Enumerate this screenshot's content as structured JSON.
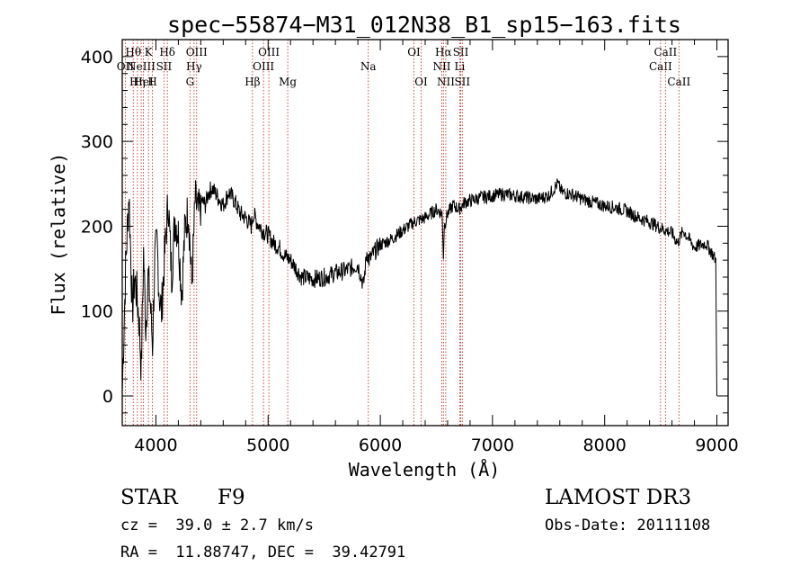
{
  "chart_data": {
    "type": "line",
    "title": "spec−55874−M31_012N38_B1_sp15−163.fits",
    "xlabel": "Wavelength (Å)",
    "ylabel": "Flux (relative)",
    "xlim": [
      3700,
      9100
    ],
    "ylim": [
      -35,
      420
    ],
    "x_ticks": [
      4000,
      5000,
      6000,
      7000,
      8000,
      9000
    ],
    "y_ticks": [
      0,
      100,
      200,
      300,
      400
    ],
    "series": [
      {
        "name": "spectrum",
        "x": [
          3700,
          3730,
          3760,
          3790,
          3810,
          3830,
          3850,
          3870,
          3890,
          3910,
          3930,
          3950,
          3970,
          3990,
          4010,
          4030,
          4050,
          4080,
          4110,
          4140,
          4170,
          4200,
          4230,
          4260,
          4290,
          4320,
          4350,
          4380,
          4410,
          4440,
          4470,
          4500,
          4550,
          4600,
          4650,
          4700,
          4750,
          4800,
          4850,
          4870,
          4900,
          4950,
          5000,
          5050,
          5100,
          5150,
          5200,
          5300,
          5400,
          5500,
          5600,
          5700,
          5800,
          5850,
          5880,
          5900,
          5950,
          6000,
          6100,
          6200,
          6300,
          6400,
          6500,
          6550,
          6563,
          6570,
          6600,
          6650,
          6700,
          6750,
          6800,
          6900,
          7000,
          7100,
          7200,
          7300,
          7400,
          7500,
          7580,
          7620,
          7700,
          7800,
          7900,
          8000,
          8100,
          8200,
          8300,
          8400,
          8500,
          8600,
          8650,
          8700,
          8800,
          8900,
          8950,
          8990,
          9000
        ],
        "values": [
          5,
          150,
          240,
          100,
          140,
          120,
          90,
          30,
          170,
          80,
          140,
          110,
          60,
          160,
          180,
          120,
          100,
          170,
          230,
          140,
          210,
          190,
          120,
          200,
          220,
          130,
          230,
          215,
          230,
          225,
          240,
          245,
          235,
          225,
          240,
          230,
          215,
          210,
          200,
          215,
          205,
          195,
          190,
          180,
          175,
          165,
          160,
          140,
          138,
          140,
          145,
          148,
          155,
          130,
          170,
          160,
          170,
          178,
          185,
          195,
          205,
          210,
          220,
          215,
          165,
          200,
          215,
          225,
          220,
          228,
          230,
          234,
          236,
          238,
          236,
          234,
          232,
          236,
          250,
          240,
          238,
          232,
          228,
          224,
          222,
          218,
          210,
          205,
          198,
          192,
          180,
          195,
          175,
          180,
          170,
          160,
          0
        ]
      }
    ],
    "emission_lines": [
      {
        "wavelength": 3727,
        "label": "OII",
        "row": 2
      },
      {
        "wavelength": 3798,
        "label": "Hθ",
        "row": 1
      },
      {
        "wavelength": 3835,
        "label": "Hη",
        "row": 3
      },
      {
        "wavelength": 3869,
        "label": "NeIII",
        "row": 2
      },
      {
        "wavelength": 3889,
        "label": "HeI",
        "row": 3
      },
      {
        "wavelength": 3934,
        "label": "K",
        "row": 1
      },
      {
        "wavelength": 3969,
        "label": "H",
        "row": 3
      },
      {
        "wavelength": 4072,
        "label": "SII",
        "row": 2
      },
      {
        "wavelength": 4102,
        "label": "Hδ",
        "row": 1
      },
      {
        "wavelength": 4304,
        "label": "G",
        "row": 3
      },
      {
        "wavelength": 4340,
        "label": "Hγ",
        "row": 2
      },
      {
        "wavelength": 4363,
        "label": "OIII",
        "row": 1
      },
      {
        "wavelength": 4861,
        "label": "Hβ",
        "row": 3
      },
      {
        "wavelength": 4959,
        "label": "OIII",
        "row": 2
      },
      {
        "wavelength": 5007,
        "label": "OIII",
        "row": 1
      },
      {
        "wavelength": 5175,
        "label": "Mg",
        "row": 3
      },
      {
        "wavelength": 5893,
        "label": "Na",
        "row": 2
      },
      {
        "wavelength": 6300,
        "label": "OI",
        "row": 1
      },
      {
        "wavelength": 6364,
        "label": "OI",
        "row": 3
      },
      {
        "wavelength": 6548,
        "label": "NII",
        "row": 2
      },
      {
        "wavelength": 6563,
        "label": "Hα",
        "row": 1
      },
      {
        "wavelength": 6584,
        "label": "NII",
        "row": 3
      },
      {
        "wavelength": 6708,
        "label": "Li",
        "row": 2
      },
      {
        "wavelength": 6717,
        "label": "SII",
        "row": 1
      },
      {
        "wavelength": 6731,
        "label": "SII",
        "row": 3
      },
      {
        "wavelength": 8498,
        "label": "CaII",
        "row": 2
      },
      {
        "wavelength": 8542,
        "label": "CaII",
        "row": 1
      },
      {
        "wavelength": 8662,
        "label": "CaII",
        "row": 3
      }
    ]
  },
  "info": {
    "class": "STAR",
    "subclass": "F9",
    "survey": "LAMOST DR3",
    "redshift": "cz =  39.0 ± 2.7 km/s",
    "obs_date": "Obs-Date: 20111108",
    "coords": "RA =  11.88747, DEC =  39.42791"
  },
  "colors": {
    "line_marker": "#c0392b",
    "spectrum": "#000000"
  }
}
